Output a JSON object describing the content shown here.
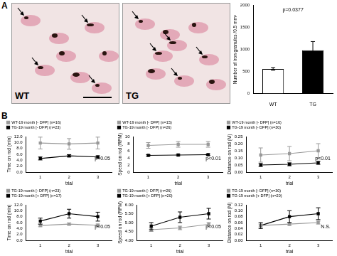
{
  "figure": {
    "panel_labels": [
      "A",
      "B"
    ],
    "image_labels": [
      "WT",
      "TG"
    ]
  },
  "chart_data": [
    {
      "type": "bar",
      "categories": [
        "WT",
        "TG"
      ],
      "values": [
        560,
        980
      ],
      "errors": [
        30,
        200
      ],
      "colors": [
        "#ffffff",
        "#000000"
      ],
      "y_label": "Number of iron granules /0.5 mm²",
      "ylim": [
        0,
        2000
      ],
      "yticks": [
        0,
        500,
        1000,
        1500,
        2000
      ],
      "annotation": "p=0.0377"
    },
    {
      "type": "line",
      "categories": [
        "1",
        "2",
        "3"
      ],
      "x_label": "trial",
      "y_label": "Time on rod (min)",
      "ylim": [
        0,
        12
      ],
      "yticks": [
        {
          "value": 0,
          "label": "0.0"
        },
        {
          "value": 2,
          "label": "2.0"
        },
        {
          "value": 4,
          "label": "4.0"
        },
        {
          "value": 6,
          "label": "6.0"
        },
        {
          "value": 8,
          "label": "8.0"
        },
        {
          "value": 10,
          "label": "10.0"
        },
        {
          "value": 12,
          "label": "12.0"
        }
      ],
      "legend": "top",
      "annotation": "p<0.05",
      "series": [
        {
          "name": "WT-19 month [- DFP] (n=16)",
          "color": "#999999",
          "marker": "square",
          "values": [
            9.8,
            9.5,
            9.8
          ],
          "errors": [
            2.0,
            1.8,
            2.0
          ]
        },
        {
          "name": "TG-19 month [- DFP] (n=23)",
          "color": "#000000",
          "marker": "square",
          "values": [
            4.6,
            5.5,
            5.1
          ],
          "errors": [
            0.5,
            0.4,
            0.4
          ]
        }
      ]
    },
    {
      "type": "line",
      "categories": [
        "1",
        "2",
        "3"
      ],
      "x_label": "trial",
      "y_label": "Speed on rod (RPM)",
      "ylim": [
        0,
        10
      ],
      "yticks": [
        0,
        2,
        4,
        6,
        8,
        10
      ],
      "legend": "top",
      "annotation": "p<0.01",
      "series": [
        {
          "name": "WT-19 month [- DFP] (n=15)",
          "color": "#999999",
          "marker": "square",
          "values": [
            7.5,
            7.8,
            7.8
          ],
          "errors": [
            0.8,
            0.8,
            0.8
          ]
        },
        {
          "name": "TG-19 month [- DFP] (n=26)",
          "color": "#000000",
          "marker": "square",
          "values": [
            4.7,
            4.8,
            4.9
          ],
          "errors": [
            0.2,
            0.2,
            0.2
          ]
        }
      ]
    },
    {
      "type": "line",
      "categories": [
        "1",
        "2",
        "3"
      ],
      "x_label": "trial",
      "y_label": "Distance on rod (M)",
      "ylim": [
        0,
        0.25
      ],
      "yticks": [
        {
          "value": 0,
          "label": "0.00"
        },
        {
          "value": 0.05,
          "label": "0.05"
        },
        {
          "value": 0.1,
          "label": "0.10"
        },
        {
          "value": 0.15,
          "label": "0.15"
        },
        {
          "value": 0.2,
          "label": "0.20"
        },
        {
          "value": 0.25,
          "label": "0.25"
        }
      ],
      "legend": "top",
      "annotation": "p<0.01",
      "series": [
        {
          "name": "WT-19 month [- DFP] (n=16)",
          "color": "#999999",
          "marker": "square",
          "values": [
            0.12,
            0.13,
            0.15
          ],
          "errors": [
            0.05,
            0.05,
            0.05
          ]
        },
        {
          "name": "TG-19 month [- DFP] (n=30)",
          "color": "#000000",
          "marker": "square",
          "values": [
            0.05,
            0.055,
            0.065
          ],
          "errors": [
            0.01,
            0.01,
            0.01
          ]
        }
      ]
    },
    {
      "type": "line",
      "categories": [
        "1",
        "2",
        "3"
      ],
      "x_label": "trial",
      "y_label": "Time on rod (min)",
      "ylim": [
        0,
        12
      ],
      "yticks": [
        {
          "value": 0,
          "label": "0.0"
        },
        {
          "value": 2,
          "label": "2.0"
        },
        {
          "value": 4,
          "label": "4.0"
        },
        {
          "value": 6,
          "label": "6.0"
        },
        {
          "value": 8,
          "label": "8.0"
        },
        {
          "value": 10,
          "label": "10.0"
        },
        {
          "value": 12,
          "label": "12.0"
        }
      ],
      "legend": "top",
      "annotation": "p<0.05",
      "series": [
        {
          "name": "TG-19 month [- DFP] (n=23)",
          "color": "#999999",
          "marker": "square",
          "values": [
            5.0,
            5.5,
            5.1
          ],
          "errors": [
            0.4,
            0.4,
            0.4
          ]
        },
        {
          "name": "TG-19 month [+ DFP] (n=17)",
          "color": "#000000",
          "marker": "square",
          "values": [
            6.5,
            9.0,
            8.0
          ],
          "errors": [
            1.0,
            1.5,
            1.5
          ]
        }
      ]
    },
    {
      "type": "line",
      "categories": [
        "1",
        "2",
        "3"
      ],
      "x_label": "trial",
      "y_label": "Speed on rod (RPM)",
      "ylim": [
        4,
        6
      ],
      "yticks": [
        {
          "value": 4,
          "label": "4.00"
        },
        {
          "value": 4.5,
          "label": "4.50"
        },
        {
          "value": 5,
          "label": "5.00"
        },
        {
          "value": 5.5,
          "label": "5.50"
        },
        {
          "value": 6,
          "label": "6.00"
        }
      ],
      "legend": "top",
      "annotation": "p<0.05",
      "series": [
        {
          "name": "TG-19 month [- DFP] (n=26)",
          "color": "#999999",
          "marker": "square",
          "values": [
            4.6,
            4.7,
            4.9
          ],
          "errors": [
            0.1,
            0.1,
            0.1
          ]
        },
        {
          "name": "TG-19 month [+ DFP] (n=20)",
          "color": "#000000",
          "marker": "square",
          "values": [
            4.8,
            5.3,
            5.5
          ],
          "errors": [
            0.2,
            0.3,
            0.3
          ]
        }
      ]
    },
    {
      "type": "line",
      "categories": [
        "1",
        "2",
        "3"
      ],
      "x_label": "trial",
      "y_label": "Distance on rod (M)",
      "ylim": [
        0,
        0.12
      ],
      "yticks": [
        {
          "value": 0,
          "label": "0.00"
        },
        {
          "value": 0.02,
          "label": "0.02"
        },
        {
          "value": 0.04,
          "label": "0.04"
        },
        {
          "value": 0.06,
          "label": "0.06"
        },
        {
          "value": 0.08,
          "label": "0.08"
        },
        {
          "value": 0.1,
          "label": "0.10"
        },
        {
          "value": 0.12,
          "label": "0.12"
        }
      ],
      "legend": "top",
      "annotation": "N.S.",
      "series": [
        {
          "name": "TG-19 month [- DFP] (n=30)",
          "color": "#999999",
          "marker": "square",
          "values": [
            0.05,
            0.055,
            0.06
          ],
          "errors": [
            0.005,
            0.005,
            0.005
          ]
        },
        {
          "name": "TG-19 month [+ DFP] (n=20)",
          "color": "#000000",
          "marker": "square",
          "values": [
            0.05,
            0.08,
            0.09
          ],
          "errors": [
            0.01,
            0.02,
            0.02
          ]
        }
      ]
    }
  ]
}
